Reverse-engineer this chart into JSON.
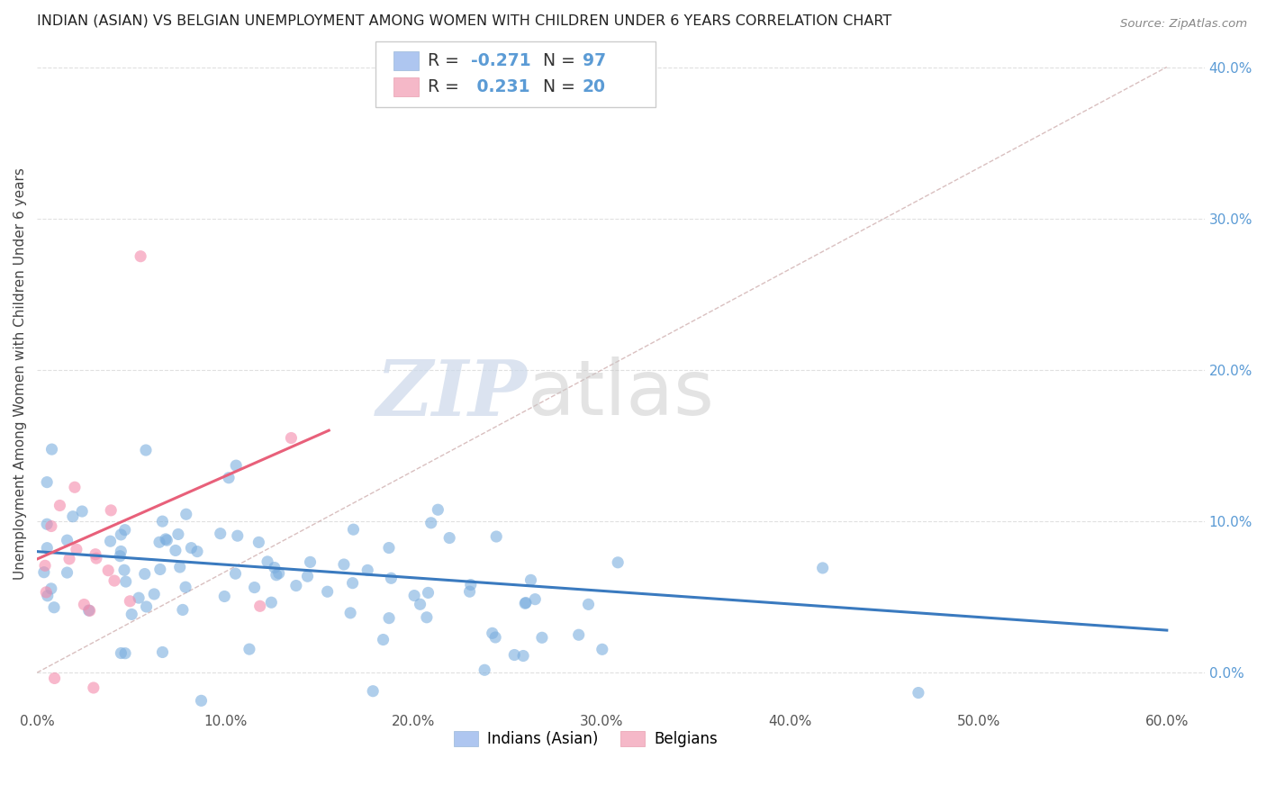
{
  "title": "INDIAN (ASIAN) VS BELGIAN UNEMPLOYMENT AMONG WOMEN WITH CHILDREN UNDER 6 YEARS CORRELATION CHART",
  "source": "Source: ZipAtlas.com",
  "ylabel": "Unemployment Among Women with Children Under 6 years",
  "xlim": [
    0.0,
    0.62
  ],
  "ylim": [
    -0.025,
    0.42
  ],
  "xticks": [
    0.0,
    0.1,
    0.2,
    0.3,
    0.4,
    0.5,
    0.6
  ],
  "xtick_labels": [
    "0.0%",
    "10.0%",
    "20.0%",
    "30.0%",
    "40.0%",
    "50.0%",
    "60.0%"
  ],
  "ytick_labels_right": [
    "0.0%",
    "10.0%",
    "20.0%",
    "30.0%",
    "40.0%"
  ],
  "yticks_right": [
    0.0,
    0.1,
    0.2,
    0.3,
    0.4
  ],
  "indian_color": "#7baede",
  "belgian_color": "#f48aab",
  "indian_legend_color": "#aec6f0",
  "belgian_legend_color": "#f5b8c8",
  "trend_indian_color": "#3a7abf",
  "trend_belgian_color": "#e8607a",
  "diagonal_color": "#d0b0b0",
  "watermark_zip": "ZIP",
  "watermark_atlas": "atlas",
  "watermark_color": "#ccd8ea",
  "watermark_atlas_color": "#c8c8c8",
  "background_color": "#ffffff",
  "grid_color": "#e0e0e0",
  "R_indian": -0.271,
  "N_indian": 97,
  "R_belgian": 0.231,
  "N_belgian": 20,
  "seed": 7,
  "indian_trend_x0": 0.0,
  "indian_trend_y0": 0.08,
  "indian_trend_x1": 0.6,
  "indian_trend_y1": 0.028,
  "belgian_trend_x0": 0.0,
  "belgian_trend_y0": 0.075,
  "belgian_trend_x1": 0.155,
  "belgian_trend_y1": 0.16
}
